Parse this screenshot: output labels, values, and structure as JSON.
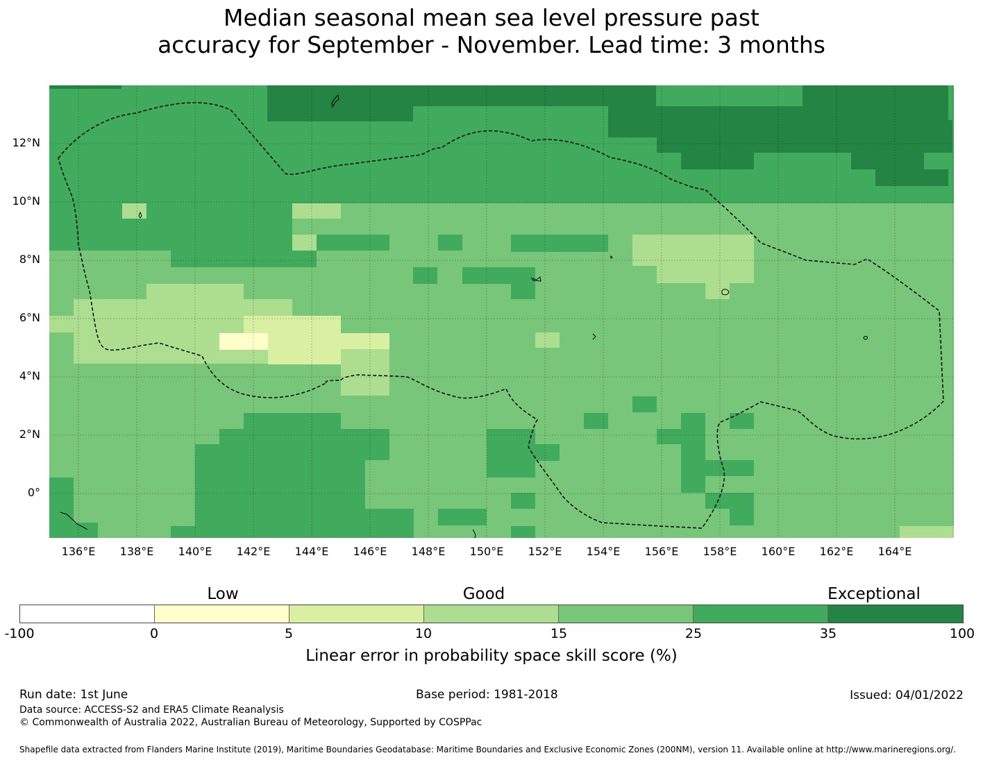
{
  "title_line1": "Median seasonal mean sea level pressure past",
  "title_line2": "accuracy for September - November. Lead time: 3 months",
  "map": {
    "lat_labels": [
      "12°N",
      "10°N",
      "8°N",
      "6°N",
      "4°N",
      "2°N",
      "0°"
    ],
    "lon_labels": [
      "136°E",
      "138°E",
      "140°E",
      "142°E",
      "144°E",
      "146°E",
      "148°E",
      "150°E",
      "152°E",
      "154°E",
      "156°E",
      "158°E",
      "160°E",
      "162°E",
      "164°E"
    ],
    "colors": {
      "class_0_5": "#ffffcc",
      "class_5_10": "#d9f0a3",
      "class_10_15": "#addd8e",
      "class_15_25": "#78c679",
      "class_25_35": "#41ab5d",
      "class_35_100": "#238443",
      "eez_boundary": "#000000"
    }
  },
  "legend": {
    "categories": [
      "Low",
      "Good",
      "Exceptional"
    ],
    "ticks": [
      "-100",
      "0",
      "5",
      "10",
      "15",
      "25",
      "35",
      "100"
    ],
    "segment_colors": [
      "#ffffff",
      "#ffffcc",
      "#d9f0a3",
      "#addd8e",
      "#78c679",
      "#41ab5d",
      "#238443"
    ],
    "label": "Linear error in probability space skill score (%)"
  },
  "footer": {
    "run_date": "Run date: 1st June",
    "base_period": "Base period: 1981-2018",
    "issued": "Issued: 04/01/2022",
    "data_source": "Data source: ACCESS-S2 and ERA5 Climate Reanalysis",
    "copyright": "© Commonwealth of Australia 2022, Australian Bureau of Meteorology, Supported by COSPPac",
    "shapefile": "Shapefile data extracted from Flanders Marine Institute (2019), Maritime Boundaries Geodatabase: Maritime Boundaries and Exclusive Economic Zones (200NM), version 11. Available online at http://www.marineregions.org/."
  }
}
